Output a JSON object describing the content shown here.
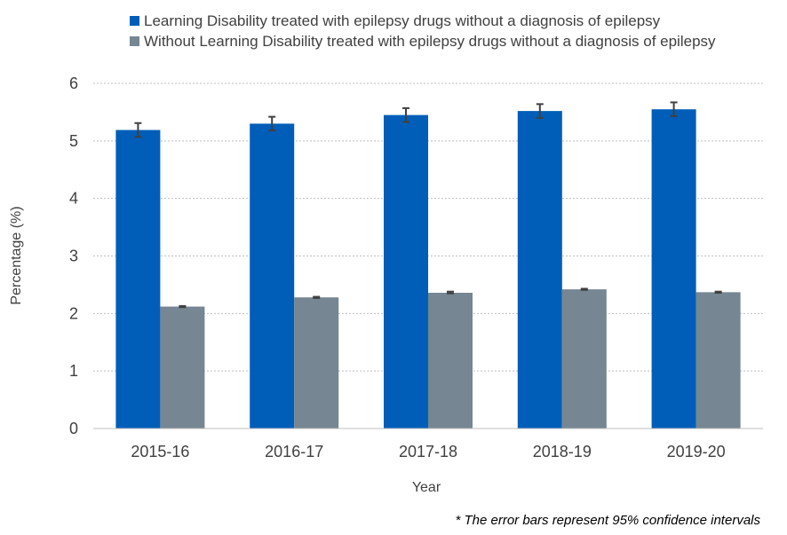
{
  "chart_data": {
    "type": "bar",
    "title": "",
    "categories": [
      "2015-16",
      "2016-17",
      "2017-18",
      "2018-19",
      "2019-20"
    ],
    "series": [
      {
        "name": "Learning Disability treated with epilepsy drugs without a diagnosis of epilepsy",
        "color": "#005EB8",
        "values": [
          5.19,
          5.3,
          5.45,
          5.52,
          5.55
        ],
        "ci_low": [
          5.07,
          5.18,
          5.33,
          5.4,
          5.43
        ],
        "ci_high": [
          5.31,
          5.42,
          5.57,
          5.64,
          5.67
        ]
      },
      {
        "name": "Without Learning Disability treated with epilepsy drugs without a diagnosis of epilepsy",
        "color": "#768692",
        "values": [
          2.12,
          2.28,
          2.36,
          2.42,
          2.37
        ],
        "ci_low": [
          2.11,
          2.27,
          2.35,
          2.41,
          2.36
        ],
        "ci_high": [
          2.13,
          2.29,
          2.38,
          2.43,
          2.38
        ]
      }
    ],
    "xlabel": "Year",
    "ylabel": "Percentage (%)",
    "ylim": [
      0,
      6
    ],
    "yticks": [
      0,
      1,
      2,
      3,
      4,
      5,
      6
    ],
    "grid": true,
    "gridline_color": "#bfbfbf",
    "legend_position": "top",
    "footnote": "* The error bars represent 95%  confidence intervals"
  }
}
